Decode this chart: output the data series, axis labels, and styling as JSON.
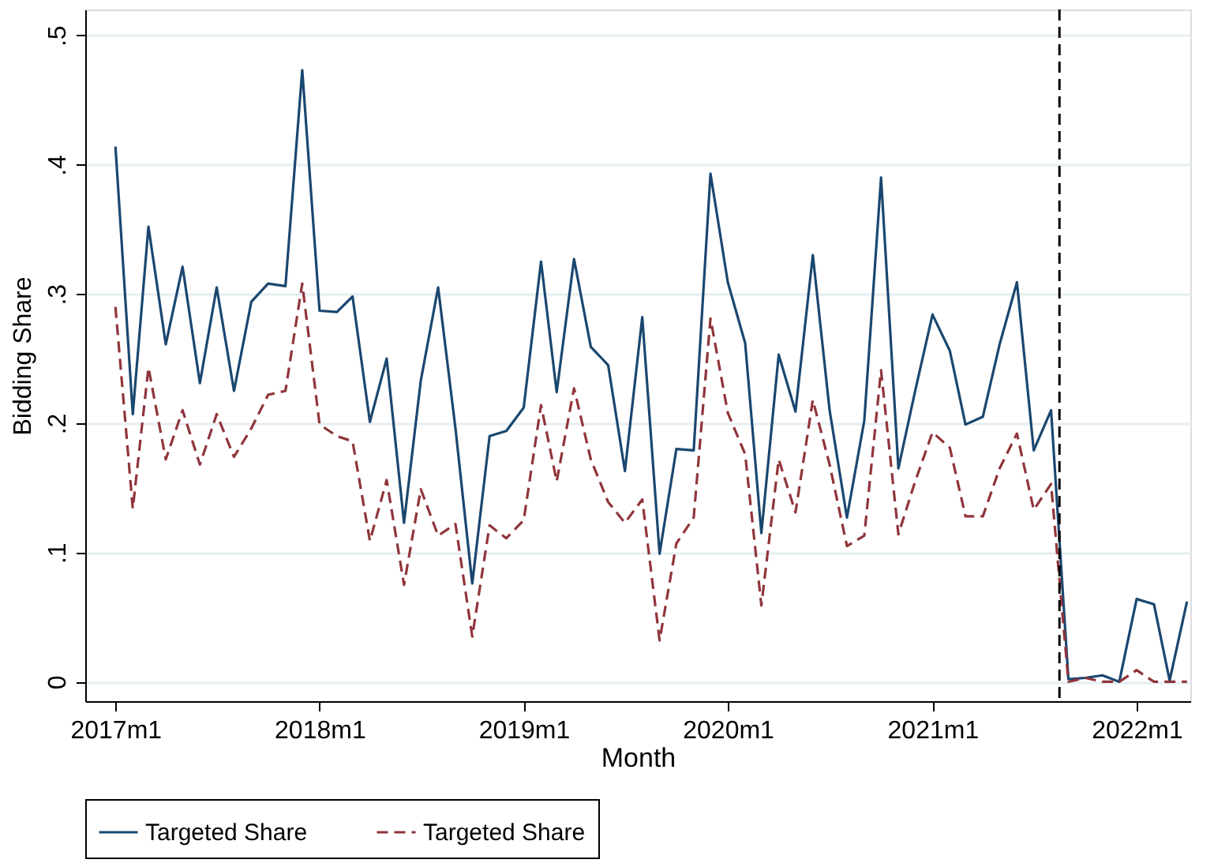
{
  "chart_data": {
    "type": "line",
    "xlabel": "Month",
    "ylabel": "Bidding Share",
    "x": [
      "2017-01",
      "2017-02",
      "2017-03",
      "2017-04",
      "2017-05",
      "2017-06",
      "2017-07",
      "2017-08",
      "2017-09",
      "2017-10",
      "2017-11",
      "2017-12",
      "2018-01",
      "2018-02",
      "2018-03",
      "2018-04",
      "2018-05",
      "2018-06",
      "2018-07",
      "2018-08",
      "2018-09",
      "2018-10",
      "2018-11",
      "2018-12",
      "2019-01",
      "2019-02",
      "2019-03",
      "2019-04",
      "2019-05",
      "2019-06",
      "2019-07",
      "2019-08",
      "2019-09",
      "2019-10",
      "2019-11",
      "2019-12",
      "2020-01",
      "2020-02",
      "2020-03",
      "2020-04",
      "2020-05",
      "2020-06",
      "2020-07",
      "2020-08",
      "2020-09",
      "2020-10",
      "2020-11",
      "2020-12",
      "2021-01",
      "2021-02",
      "2021-03",
      "2021-04",
      "2021-05",
      "2021-06",
      "2021-07",
      "2021-08",
      "2021-09",
      "2021-10",
      "2021-11",
      "2021-12",
      "2022-01",
      "2022-02",
      "2022-03",
      "2022-04"
    ],
    "series": [
      {
        "name": "Targeted Share",
        "color": "#1a476f",
        "line_style": "solid",
        "values": [
          0.414,
          0.207,
          0.352,
          0.261,
          0.321,
          0.231,
          0.305,
          0.225,
          0.294,
          0.308,
          0.306,
          0.473,
          0.287,
          0.286,
          0.298,
          0.201,
          0.25,
          0.123,
          0.233,
          0.305,
          0.196,
          0.076,
          0.19,
          0.194,
          0.212,
          0.325,
          0.224,
          0.327,
          0.259,
          0.245,
          0.163,
          0.282,
          0.099,
          0.18,
          0.179,
          0.393,
          0.309,
          0.262,
          0.115,
          0.253,
          0.209,
          0.33,
          0.21,
          0.127,
          0.202,
          0.39,
          0.165,
          0.225,
          0.284,
          0.256,
          0.199,
          0.205,
          0.261,
          0.309,
          0.179,
          0.21,
          0.002,
          0.003,
          0.005,
          0.0,
          0.064,
          0.06,
          0.001,
          0.062
        ]
      },
      {
        "name": "Targeted Share",
        "color": "#90353b",
        "line_style": "dashed",
        "values": [
          0.29,
          0.134,
          0.243,
          0.172,
          0.21,
          0.168,
          0.207,
          0.174,
          0.196,
          0.222,
          0.225,
          0.308,
          0.199,
          0.19,
          0.186,
          0.109,
          0.156,
          0.075,
          0.149,
          0.113,
          0.122,
          0.035,
          0.121,
          0.111,
          0.125,
          0.214,
          0.155,
          0.227,
          0.172,
          0.139,
          0.123,
          0.141,
          0.032,
          0.107,
          0.127,
          0.281,
          0.208,
          0.176,
          0.059,
          0.172,
          0.131,
          0.218,
          0.168,
          0.105,
          0.113,
          0.241,
          0.114,
          0.155,
          0.193,
          0.181,
          0.128,
          0.128,
          0.165,
          0.192,
          0.133,
          0.153,
          0.0,
          0.003,
          0.0,
          0.0,
          0.009,
          0.0,
          0.0,
          0.0
        ]
      }
    ],
    "xlim": [
      "2016-11-08",
      "2022-04-07"
    ],
    "xticks": [
      {
        "value": "2017-01",
        "label": "2017m1"
      },
      {
        "value": "2018-01",
        "label": "2018m1"
      },
      {
        "value": "2019-01",
        "label": "2019m1"
      },
      {
        "value": "2020-01",
        "label": "2020m1"
      },
      {
        "value": "2021-01",
        "label": "2021m1"
      },
      {
        "value": "2022-01",
        "label": "2022m1"
      }
    ],
    "ylim": [
      -0.015,
      0.52
    ],
    "yticks": [
      0,
      {
        "value": 0.1,
        "label": ".1"
      },
      {
        "value": 0.2,
        "label": ".2"
      },
      {
        "value": 0.3,
        "label": ".3"
      },
      {
        "value": 0.4,
        "label": ".4"
      },
      {
        "value": 0.5,
        "label": ".5"
      }
    ],
    "ref_lines": [
      {
        "axis": "x",
        "value": "2021-08-16",
        "color": "#000000",
        "line_style": "dashed"
      }
    ],
    "grid": "y",
    "legend": "bottom",
    "marker": "none"
  }
}
